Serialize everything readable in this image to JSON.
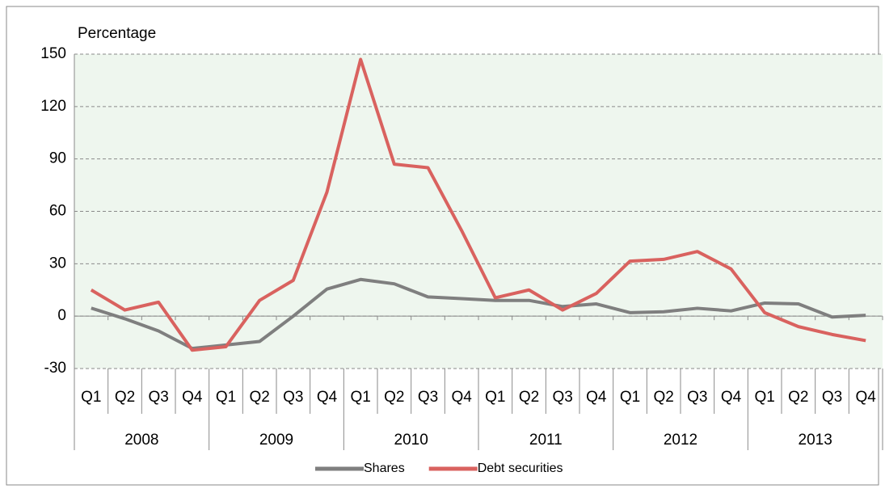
{
  "chart_data": {
    "type": "line",
    "ylabel": "Percentage",
    "categories": [
      "Q1",
      "Q2",
      "Q3",
      "Q4",
      "Q1",
      "Q2",
      "Q3",
      "Q4",
      "Q1",
      "Q2",
      "Q3",
      "Q4",
      "Q1",
      "Q2",
      "Q3",
      "Q4",
      "Q1",
      "Q2",
      "Q3",
      "Q4",
      "Q1",
      "Q2",
      "Q3",
      "Q4"
    ],
    "years": [
      "2008",
      "2009",
      "2010",
      "2011",
      "2012",
      "2013"
    ],
    "series": [
      {
        "name": "Shares",
        "color": "#7f7f7f",
        "values": [
          4.6,
          -1.5,
          -8.5,
          -18.5,
          -16.5,
          -14.5,
          0,
          15.5,
          21,
          18.5,
          11,
          10,
          9,
          9,
          5.5,
          7,
          2,
          2.5,
          4.5,
          3,
          7.5,
          7,
          -0.5,
          0.5
        ]
      },
      {
        "name": "Debt securities",
        "color": "#d9625f",
        "values": [
          15,
          3.5,
          8,
          -19.5,
          -17.5,
          9,
          20.5,
          71,
          147,
          87,
          85,
          49,
          10.5,
          15,
          3.5,
          13,
          31.5,
          32.5,
          37,
          27,
          2,
          -6,
          -10.5,
          -14
        ]
      }
    ],
    "ylim": [
      -30,
      150
    ],
    "yticks": [
      -30,
      0,
      30,
      60,
      90,
      120,
      150
    ],
    "grid": true,
    "legend": "bottom",
    "background": "#eef6ee"
  }
}
